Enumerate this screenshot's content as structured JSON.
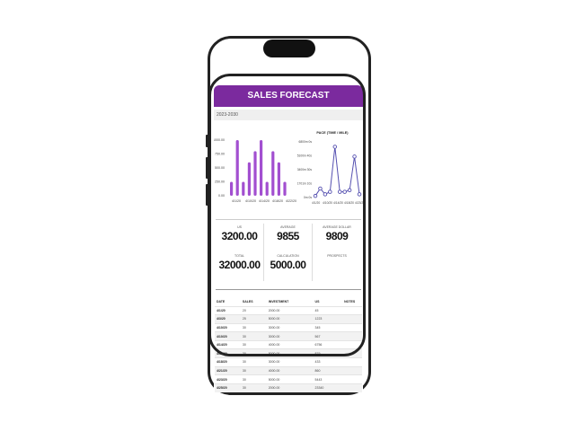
{
  "header": {
    "title": "SALES FORECAST",
    "period": "2023-2030"
  },
  "colors": {
    "header": "#7b2a9e",
    "bars": "#a24fd0",
    "line": "#5550b0"
  },
  "chart_data": [
    {
      "type": "bar",
      "title": "",
      "yticks": [
        "0.00",
        "250.00",
        "500.00",
        "750.00",
        "1000.00"
      ],
      "ylim": [
        0,
        1000
      ],
      "xticks": [
        "4/1/20",
        "4/10/20",
        "4/14/20",
        "4/18/20",
        "4/22/20"
      ],
      "values": [
        250,
        1000,
        250,
        600,
        800,
        1000,
        250,
        800,
        600,
        250
      ]
    },
    {
      "type": "line",
      "title": "PACE (TIME / MILE)",
      "yticks": [
        "0m 0s",
        "1701m 10s",
        "3400m 30s",
        "5100m 40s",
        "6800m 0s"
      ],
      "ylim": [
        0,
        6800
      ],
      "xticks": [
        "4/1/20",
        "4/10/20",
        "4/14/20",
        "4/18/20",
        "4/23/20"
      ],
      "values": [
        200,
        1100,
        400,
        700,
        6200,
        700,
        700,
        900,
        5000,
        400
      ]
    }
  ],
  "stats": [
    {
      "label": "US",
      "value": "3200.00"
    },
    {
      "label": "AVERAGE",
      "value": "9855"
    },
    {
      "label": "AVERAGE DOLLAR",
      "value": "9809"
    },
    {
      "label": "TOTAL",
      "value": "32000.00"
    },
    {
      "label": "CALCULATION",
      "value": "5000.00"
    },
    {
      "label": "PROSPECTS",
      "value": ""
    }
  ],
  "table": {
    "headers": [
      "DATE",
      "SALES",
      "INVESTMENT",
      "US",
      "NOTES"
    ],
    "rows": [
      [
        "4/1/20",
        "20",
        "2000.00",
        "45",
        ""
      ],
      [
        "4/3/20",
        "25",
        "5000.00",
        "1223",
        ""
      ],
      [
        "4/10/20",
        "30",
        "3000.00",
        "345",
        ""
      ],
      [
        "4/10/20",
        "30",
        "3000.00",
        "567",
        ""
      ],
      [
        "4/14/20",
        "30",
        "4000.00",
        "6756",
        ""
      ],
      [
        "4/15/20",
        "30",
        "5000.00",
        "879",
        ""
      ],
      [
        "4/18/20",
        "30",
        "3000.00",
        "433",
        ""
      ],
      [
        "4/21/20",
        "30",
        "4000.00",
        "860",
        ""
      ],
      [
        "4/23/20",
        "30",
        "5000.00",
        "5443",
        ""
      ],
      [
        "4/25/20",
        "30",
        "2000.00",
        "23340",
        ""
      ]
    ]
  }
}
